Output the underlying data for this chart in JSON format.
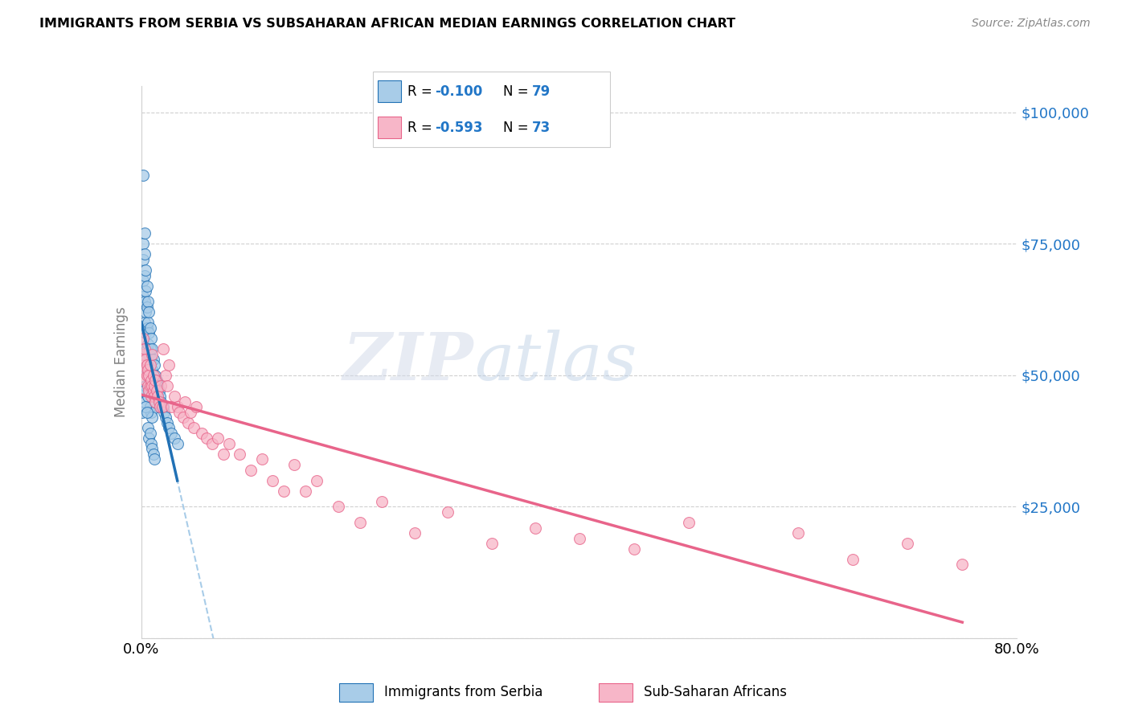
{
  "title": "IMMIGRANTS FROM SERBIA VS SUBSAHARAN AFRICAN MEDIAN EARNINGS CORRELATION CHART",
  "source": "Source: ZipAtlas.com",
  "ylabel": "Median Earnings",
  "yticks": [
    0,
    25000,
    50000,
    75000,
    100000
  ],
  "ytick_labels": [
    "",
    "$25,000",
    "$50,000",
    "$75,000",
    "$100,000"
  ],
  "ylim": [
    0,
    105000
  ],
  "xlim": [
    0.0,
    0.8
  ],
  "color_serbia": "#a8cce8",
  "color_subsaharan": "#f7b6c8",
  "color_line_serbia": "#2171b5",
  "color_line_subsaharan": "#e8648a",
  "color_line_dash": "#a8cce8",
  "serbia_x": [
    0.001,
    0.001,
    0.002,
    0.002,
    0.002,
    0.002,
    0.003,
    0.003,
    0.003,
    0.003,
    0.003,
    0.004,
    0.004,
    0.004,
    0.004,
    0.004,
    0.005,
    0.005,
    0.005,
    0.005,
    0.005,
    0.006,
    0.006,
    0.006,
    0.006,
    0.006,
    0.007,
    0.007,
    0.007,
    0.007,
    0.008,
    0.008,
    0.008,
    0.008,
    0.009,
    0.009,
    0.009,
    0.01,
    0.01,
    0.01,
    0.011,
    0.011,
    0.012,
    0.012,
    0.013,
    0.013,
    0.014,
    0.015,
    0.015,
    0.016,
    0.017,
    0.018,
    0.02,
    0.021,
    0.022,
    0.024,
    0.025,
    0.027,
    0.03,
    0.033,
    0.002,
    0.003,
    0.004,
    0.005,
    0.006,
    0.007,
    0.008,
    0.009,
    0.01,
    0.003,
    0.004,
    0.005,
    0.006,
    0.007,
    0.008,
    0.009,
    0.01,
    0.011,
    0.012
  ],
  "serbia_y": [
    47000,
    43000,
    75000,
    72000,
    68000,
    65000,
    77000,
    73000,
    69000,
    64000,
    60000,
    70000,
    66000,
    62000,
    58000,
    54000,
    67000,
    63000,
    59000,
    55000,
    51000,
    64000,
    60000,
    56000,
    52000,
    48000,
    62000,
    58000,
    54000,
    50000,
    59000,
    55000,
    51000,
    47000,
    57000,
    53000,
    49000,
    55000,
    51000,
    47000,
    53000,
    49000,
    52000,
    48000,
    50000,
    46000,
    49000,
    48000,
    44000,
    47000,
    46000,
    45000,
    44000,
    43000,
    42000,
    41000,
    40000,
    39000,
    38000,
    37000,
    88000,
    45000,
    48000,
    52000,
    46000,
    47000,
    44000,
    43000,
    42000,
    47000,
    44000,
    43000,
    40000,
    38000,
    39000,
    37000,
    36000,
    35000,
    34000
  ],
  "subsaharan_x": [
    0.001,
    0.002,
    0.002,
    0.003,
    0.003,
    0.004,
    0.004,
    0.005,
    0.005,
    0.006,
    0.006,
    0.007,
    0.007,
    0.008,
    0.008,
    0.009,
    0.009,
    0.01,
    0.01,
    0.011,
    0.011,
    0.012,
    0.012,
    0.013,
    0.013,
    0.014,
    0.015,
    0.016,
    0.017,
    0.018,
    0.019,
    0.02,
    0.022,
    0.024,
    0.025,
    0.027,
    0.03,
    0.033,
    0.035,
    0.038,
    0.04,
    0.043,
    0.045,
    0.048,
    0.05,
    0.055,
    0.06,
    0.065,
    0.07,
    0.075,
    0.08,
    0.09,
    0.1,
    0.11,
    0.12,
    0.13,
    0.14,
    0.15,
    0.16,
    0.18,
    0.2,
    0.22,
    0.25,
    0.28,
    0.32,
    0.36,
    0.4,
    0.45,
    0.5,
    0.6,
    0.65,
    0.7,
    0.75
  ],
  "subsaharan_y": [
    52000,
    57000,
    54000,
    55000,
    51000,
    53000,
    49000,
    52000,
    50000,
    51000,
    48000,
    50000,
    47000,
    52000,
    48000,
    49000,
    46000,
    54000,
    48000,
    47000,
    50000,
    48000,
    46000,
    49000,
    45000,
    47000,
    46000,
    45000,
    44000,
    48000,
    44000,
    55000,
    50000,
    48000,
    52000,
    44000,
    46000,
    44000,
    43000,
    42000,
    45000,
    41000,
    43000,
    40000,
    44000,
    39000,
    38000,
    37000,
    38000,
    35000,
    37000,
    35000,
    32000,
    34000,
    30000,
    28000,
    33000,
    28000,
    30000,
    25000,
    22000,
    26000,
    20000,
    24000,
    18000,
    21000,
    19000,
    17000,
    22000,
    20000,
    15000,
    18000,
    14000
  ],
  "legend_r1_color": "-0.100",
  "legend_n1": "79",
  "legend_r2_color": "-0.593",
  "legend_n2": "73"
}
